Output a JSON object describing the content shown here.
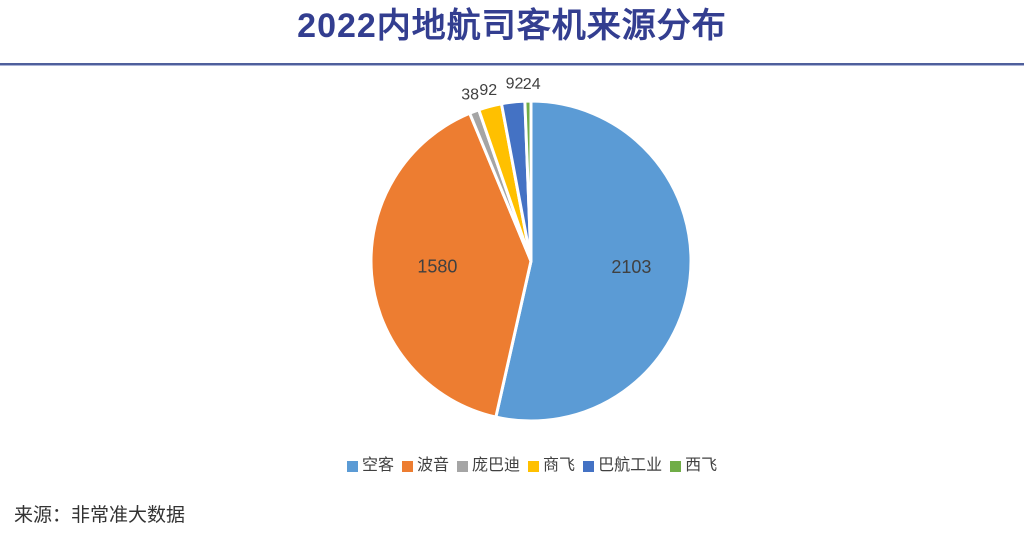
{
  "page": {
    "title": "2022内地航司客机来源分布",
    "source_note": "来源：非常准大数据"
  },
  "colors": {
    "title_text": "#333E90",
    "divider": "#4F5F9C",
    "data_label": "#404040",
    "legend_text": "#404040",
    "source_text": "#333333",
    "slice_border": "#FFFFFF"
  },
  "chart_data": {
    "type": "pie",
    "title": "2022内地航司客机来源分布",
    "total": 3929,
    "legend_position": "bottom",
    "start_angle_deg": 0,
    "direction": "clockwise",
    "slices": [
      {
        "name": "空客",
        "value": 2103,
        "color": "#5B9BD5",
        "label_inside": true,
        "label_offset": [
          5,
          -5
        ]
      },
      {
        "name": "波音",
        "value": 1580,
        "color": "#ED7D31",
        "label_inside": true,
        "label_offset": [
          2,
          -3
        ]
      },
      {
        "name": "庞巴迪",
        "value": 38,
        "color": "#A5A5A5",
        "label_inside": false,
        "label_offset": [
          1,
          -4
        ]
      },
      {
        "name": "商飞",
        "value": 92,
        "color": "#FFC000",
        "label_inside": false,
        "label_offset": [
          2,
          -3
        ]
      },
      {
        "name": "巴航工业",
        "value": 92,
        "color": "#4472C4",
        "label_inside": false,
        "label_offset": [
          3,
          -5
        ]
      },
      {
        "name": "西飞",
        "value": 24,
        "color": "#70AD47",
        "label_inside": false,
        "label_offset": [
          4,
          -3
        ]
      }
    ]
  }
}
